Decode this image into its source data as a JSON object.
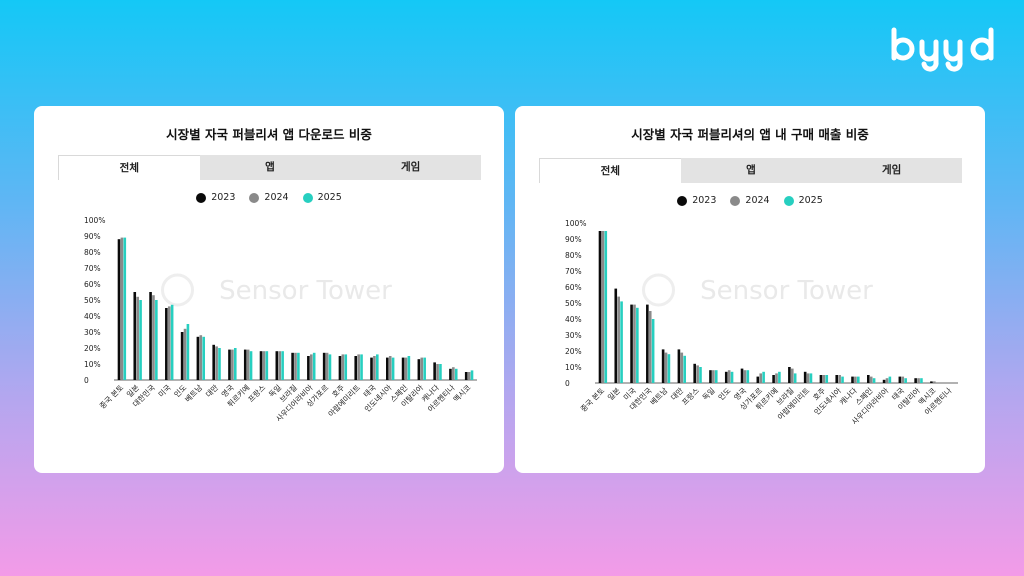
{
  "brand": {
    "name": "byyd"
  },
  "colors": {
    "y2023": "#0a0a0a",
    "y2024": "#8a8a8a",
    "y2025": "#27cfc0"
  },
  "left_card": {
    "title": "시장별 자국 퍼블리셔 앱 다운로드 비중",
    "tabs": [
      "전체",
      "앱",
      "게임"
    ],
    "active_tab": "전체",
    "legend": [
      "2023",
      "2024",
      "2025"
    ],
    "watermark": "Sensor Tower"
  },
  "right_card": {
    "title": "시장별 자국 퍼블리셔의 앱 내 구매 매출 비중",
    "tabs": [
      "전체",
      "앱",
      "게임"
    ],
    "active_tab": "전체",
    "legend": [
      "2023",
      "2024",
      "2025"
    ],
    "watermark": "Sensor Tower"
  },
  "chart_data": [
    {
      "type": "bar",
      "title": "시장별 자국 퍼블리셔 앱 다운로드 비중",
      "ylim": [
        0,
        100
      ],
      "yticks": [
        "0",
        "10%",
        "20%",
        "30%",
        "40%",
        "50%",
        "60%",
        "70%",
        "80%",
        "90%",
        "100%"
      ],
      "grid": false,
      "legend_position": "top-center",
      "categories": [
        "중국 본토",
        "일본",
        "대한민국",
        "미국",
        "인도",
        "베트남",
        "대만",
        "영국",
        "튀르키예",
        "프랑스",
        "독일",
        "브라질",
        "사우디아라비아",
        "싱가포르",
        "호주",
        "아랍에미리트",
        "태국",
        "인도네시아",
        "스페인",
        "이탈리아",
        "캐나다",
        "아르헨티나",
        "멕시코"
      ],
      "series": [
        {
          "name": "2023",
          "values": [
            88,
            55,
            55,
            45,
            30,
            27,
            22,
            19,
            19,
            18,
            18,
            17,
            15,
            17,
            15,
            15,
            14,
            14,
            14,
            13,
            11,
            7,
            5
          ]
        },
        {
          "name": "2024",
          "values": [
            89,
            52,
            53,
            46,
            32,
            28,
            21,
            19,
            19,
            18,
            18,
            17,
            16,
            17,
            16,
            16,
            15,
            15,
            14,
            14,
            10,
            8,
            5
          ]
        },
        {
          "name": "2025",
          "values": [
            89,
            50,
            50,
            47,
            35,
            27,
            20,
            20,
            18,
            18,
            18,
            17,
            17,
            16,
            16,
            16,
            16,
            14,
            15,
            14,
            10,
            7,
            6
          ]
        }
      ]
    },
    {
      "type": "bar",
      "title": "시장별 자국 퍼블리셔의 앱 내 구매 매출 비중",
      "ylim": [
        0,
        100
      ],
      "yticks": [
        "0",
        "10%",
        "20%",
        "30%",
        "40%",
        "50%",
        "60%",
        "70%",
        "80%",
        "90%",
        "100%"
      ],
      "grid": false,
      "legend_position": "top-center",
      "categories": [
        "중국 본토",
        "일본",
        "미국",
        "대한민국",
        "베트남",
        "대만",
        "프랑스",
        "독일",
        "인도",
        "영국",
        "싱가포르",
        "튀르키예",
        "브라질",
        "아랍에미리트",
        "호주",
        "인도네시아",
        "캐나다",
        "스페인",
        "사우디아라비아",
        "태국",
        "이탈리아",
        "멕시코",
        "아르헨티나"
      ],
      "series": [
        {
          "name": "2023",
          "values": [
            95,
            59,
            49,
            49,
            21,
            21,
            12,
            8,
            7,
            9,
            4,
            5,
            10,
            7,
            5,
            5,
            4,
            5,
            2,
            4,
            3,
            1,
            0
          ]
        },
        {
          "name": "2024",
          "values": [
            95,
            54,
            49,
            45,
            19,
            19,
            11,
            8,
            8,
            8,
            6,
            6,
            9,
            6,
            5,
            5,
            4,
            4,
            3,
            4,
            3,
            1,
            0
          ]
        },
        {
          "name": "2025",
          "values": [
            95,
            51,
            47,
            40,
            18,
            17,
            10,
            8,
            7,
            8,
            7,
            7,
            6,
            6,
            5,
            4,
            4,
            3,
            4,
            3,
            3,
            0,
            0
          ]
        }
      ]
    }
  ]
}
